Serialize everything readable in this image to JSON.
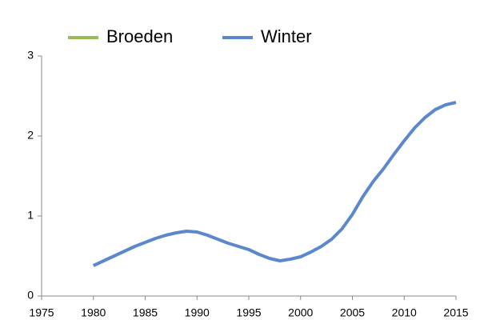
{
  "chart_data": {
    "type": "line",
    "x": [
      1980,
      1981,
      1982,
      1983,
      1984,
      1985,
      1986,
      1987,
      1988,
      1989,
      1990,
      1991,
      1992,
      1993,
      1994,
      1995,
      1996,
      1997,
      1998,
      1999,
      2000,
      2001,
      2002,
      2003,
      2004,
      2005,
      2006,
      2007,
      2008,
      2009,
      2010,
      2011,
      2012,
      2013,
      2014,
      2015
    ],
    "series": [
      {
        "name": "Broeden",
        "color": "#9bbb59",
        "values": [
          null,
          null,
          null,
          null,
          null,
          null,
          null,
          null,
          null,
          null,
          null,
          null,
          null,
          null,
          null,
          null,
          null,
          null,
          null,
          null,
          null,
          null,
          null,
          null,
          null,
          null,
          null,
          null,
          null,
          null,
          null,
          null,
          null,
          null,
          null,
          null
        ]
      },
      {
        "name": "Winter",
        "color": "#5b88cc",
        "values": [
          0.38,
          0.44,
          0.5,
          0.56,
          0.62,
          0.67,
          0.72,
          0.76,
          0.79,
          0.81,
          0.8,
          0.76,
          0.71,
          0.66,
          0.62,
          0.58,
          0.52,
          0.47,
          0.44,
          0.46,
          0.49,
          0.55,
          0.62,
          0.71,
          0.84,
          1.02,
          1.24,
          1.43,
          1.59,
          1.77,
          1.94,
          2.1,
          2.23,
          2.33,
          2.39,
          2.42
        ]
      }
    ],
    "xlim": [
      1975,
      2015
    ],
    "xticks": [
      1975,
      1980,
      1985,
      1990,
      1995,
      2000,
      2005,
      2010,
      2015
    ],
    "ylim": [
      0,
      3
    ],
    "yticks": [
      0,
      1,
      2,
      3
    ],
    "legend": "top"
  }
}
